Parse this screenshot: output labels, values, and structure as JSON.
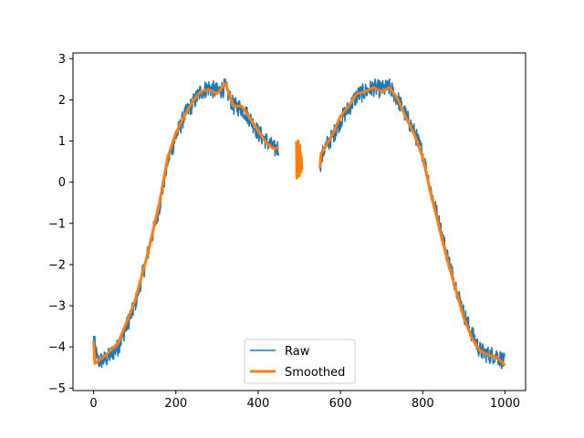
{
  "chart_data": {
    "type": "line",
    "title": "",
    "xlabel": "",
    "ylabel": "",
    "xlim": [
      -50,
      1050
    ],
    "ylim": [
      -5.06,
      3.14
    ],
    "xticks": [
      0,
      200,
      400,
      600,
      800,
      1000
    ],
    "yticks": [
      -5,
      -4,
      -3,
      -2,
      -1,
      0,
      1,
      2,
      3
    ],
    "grid": false,
    "legend_position": "lower-center",
    "series": [
      {
        "name": "Raw",
        "color": "#1f77b4",
        "line_width": 1.5,
        "noise_amplitude": 0.22,
        "segments": [
          {
            "x": [
              0,
              10,
              30,
              60,
              100,
              130,
              160,
              180,
              200,
              220,
              240,
              260,
              280,
              300,
              320,
              340,
              360,
              380,
              400,
              420,
              440,
              450
            ],
            "y": [
              -3.8,
              -4.35,
              -4.3,
              -4.0,
              -3.0,
              -1.8,
              -0.6,
              0.5,
              1.1,
              1.6,
              1.9,
              2.2,
              2.3,
              2.2,
              2.3,
              1.85,
              1.8,
              1.55,
              1.2,
              1.0,
              0.8,
              0.85
            ]
          },
          {
            "x": [
              550,
              560,
              580,
              600,
              620,
              640,
              660,
              680,
              700,
              720,
              740,
              760,
              780,
              800,
              820,
              840,
              860,
              880,
              900,
              920,
              940,
              960,
              980,
              1000
            ],
            "y": [
              0.4,
              0.8,
              1.1,
              1.5,
              1.8,
              2.1,
              2.2,
              2.3,
              2.25,
              2.3,
              2.0,
              1.6,
              1.2,
              0.7,
              -0.2,
              -1.0,
              -1.8,
              -2.5,
              -3.2,
              -3.7,
              -4.1,
              -4.2,
              -4.2,
              -4.4
            ]
          }
        ]
      },
      {
        "name": "Smoothed",
        "color": "#ff7f0e",
        "line_width": 3,
        "segments": [
          {
            "x": [
              0,
              3,
              10,
              30,
              60,
              100,
              130,
              160,
              180,
              200,
              220,
              240,
              260,
              280,
              300,
              320,
              340,
              360,
              380,
              400,
              420,
              440,
              450
            ],
            "y": [
              -3.85,
              -4.4,
              -4.35,
              -4.2,
              -3.9,
              -2.9,
              -1.8,
              -0.5,
              0.6,
              1.2,
              1.6,
              1.95,
              2.2,
              2.25,
              2.15,
              2.4,
              1.85,
              1.85,
              1.55,
              1.25,
              0.95,
              0.8,
              0.85
            ]
          },
          {
            "x": [
              493,
              494,
              495,
              496,
              497,
              498,
              499,
              500,
              501,
              502,
              503,
              504,
              505,
              506,
              507
            ],
            "y": [
              1.0,
              0.1,
              0.9,
              0.3,
              1.0,
              0.2,
              0.8,
              0.15,
              0.9,
              0.3,
              0.7,
              0.25,
              0.6,
              0.35,
              0.3
            ]
          },
          {
            "x": [
              550,
              553,
              560,
              580,
              600,
              620,
              640,
              660,
              680,
              700,
              720,
              740,
              760,
              780,
              800,
              820,
              840,
              860,
              880,
              900,
              920,
              940,
              960,
              980,
              1000
            ],
            "y": [
              0.35,
              0.7,
              0.8,
              1.15,
              1.6,
              1.85,
              2.15,
              2.2,
              2.3,
              2.2,
              2.3,
              2.0,
              1.55,
              1.15,
              0.6,
              -0.3,
              -1.1,
              -1.9,
              -2.6,
              -3.3,
              -3.8,
              -4.1,
              -4.2,
              -4.25,
              -4.45
            ]
          }
        ]
      }
    ]
  }
}
